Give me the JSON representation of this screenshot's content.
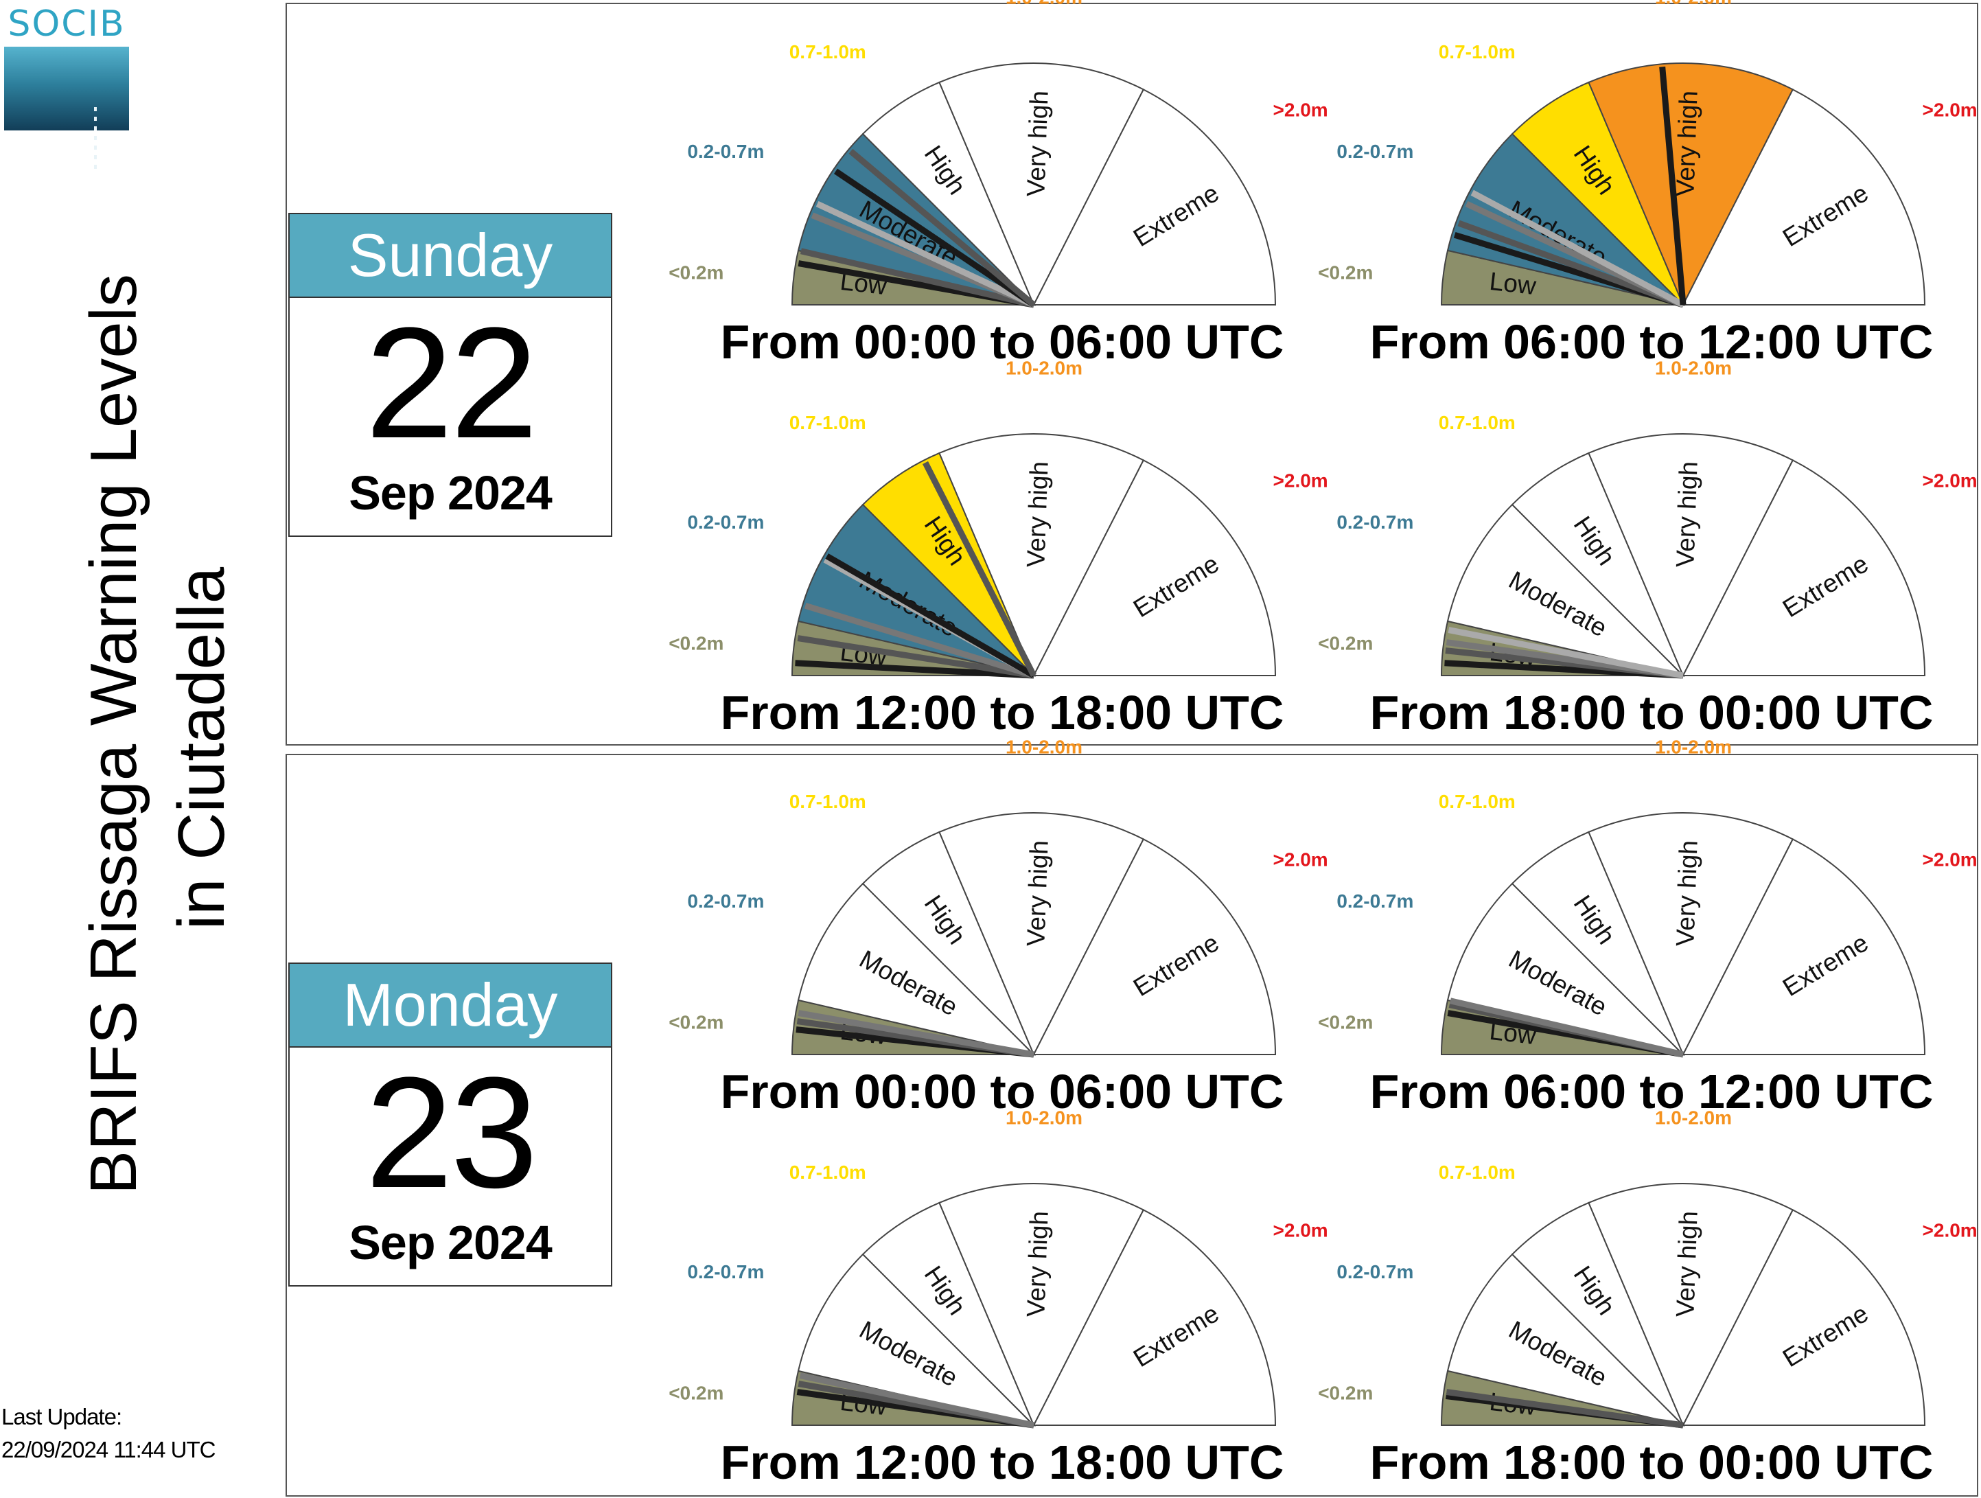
{
  "logo": {
    "text": "SOCIB"
  },
  "title": {
    "line1": "BRIFS Rissaga Warning Levels",
    "line2": "in Ciutadella"
  },
  "last_update": {
    "label": "Last Update:",
    "value": "22/09/2024 11:44 UTC"
  },
  "colors": {
    "low": "#8c8f6a",
    "moderate": "#3d7a94",
    "high": "#ffde00",
    "very_high": "#f5921e",
    "extreme": "#d7191c",
    "threshold_low": "#8c8f6a",
    "threshold_moderate": "#3d7a94",
    "threshold_high": "#ffde00",
    "threshold_very_high": "#f5921e",
    "threshold_extreme": "#e3161c",
    "calendar_header": "#56aac0"
  },
  "days": [
    {
      "weekday": "Sunday",
      "day": "22",
      "month_year": "Sep 2024"
    },
    {
      "weekday": "Monday",
      "day": "23",
      "month_year": "Sep 2024"
    }
  ],
  "chart_data": {
    "type": "gauge",
    "sectors": [
      "Low",
      "Moderate",
      "High",
      "Very high",
      "Extreme"
    ],
    "thresholds": [
      "<0.2m",
      "0.2-0.7m",
      "0.7-1.0m",
      "1.0-2.0m",
      ">2.0m"
    ],
    "sector_angle_bounds_deg": [
      0,
      13,
      45,
      67,
      117,
      180
    ],
    "needle_colors": [
      "#1a1a1a",
      "#555555",
      "#777777",
      "#aaaaaa"
    ],
    "gauges": [
      {
        "day": "22",
        "period": "From 00:00 to 06:00 UTC",
        "level": "Moderate",
        "needles_deg": [
          10,
          13,
          22,
          25,
          34,
          40
        ]
      },
      {
        "day": "22",
        "period": "From 06:00 to 12:00 UTC",
        "level": "Very high",
        "needles_deg": [
          17,
          20,
          25,
          28,
          85
        ]
      },
      {
        "day": "22",
        "period": "From 12:00 to 18:00 UTC",
        "level": "High",
        "needles_deg": [
          3,
          9,
          17,
          29,
          30,
          63
        ]
      },
      {
        "day": "22",
        "period": "From 18:00 to 00:00 UTC",
        "level": "Low",
        "needles_deg": [
          3,
          6,
          8,
          11
        ]
      },
      {
        "day": "23",
        "period": "From 00:00 to 06:00 UTC",
        "level": "Low",
        "needles_deg": [
          6,
          8,
          10
        ]
      },
      {
        "day": "23",
        "period": "From 06:00 to 12:00 UTC",
        "level": "Low",
        "needles_deg": [
          10,
          12,
          13
        ]
      },
      {
        "day": "23",
        "period": "From 12:00 to 18:00 UTC",
        "level": "Low",
        "needles_deg": [
          8,
          10,
          12
        ]
      },
      {
        "day": "23",
        "period": "From 18:00 to 00:00 UTC",
        "level": "Low",
        "needles_deg": [
          7,
          8
        ]
      }
    ]
  }
}
